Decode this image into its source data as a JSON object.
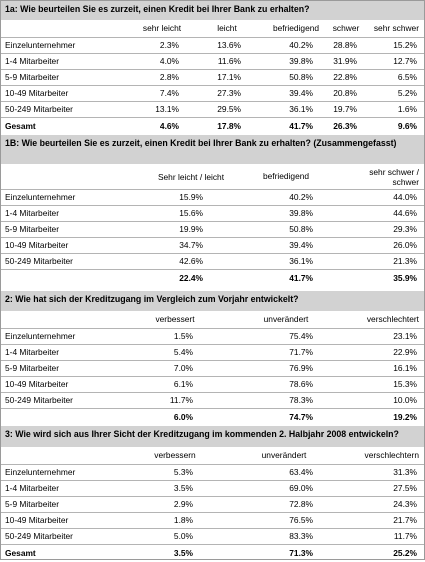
{
  "s1a": {
    "title": "1a: Wie beurteilen Sie es zurzeit, einen Kredit bei Ihrer Bank zu erhalten?",
    "headers": [
      "sehr leicht",
      "leicht",
      "befriedigend",
      "schwer",
      "sehr schwer"
    ],
    "rows": [
      {
        "label": "Einzelunternehmer",
        "values": [
          "2.3%",
          "13.6%",
          "40.2%",
          "28.8%",
          "15.2%"
        ]
      },
      {
        "label": "1-4 Mitarbeiter",
        "values": [
          "4.0%",
          "11.6%",
          "39.8%",
          "31.9%",
          "12.7%"
        ]
      },
      {
        "label": "5-9 Mitarbeiter",
        "values": [
          "2.8%",
          "17.1%",
          "50.8%",
          "22.8%",
          "6.5%"
        ]
      },
      {
        "label": "10-49 Mitarbeiter",
        "values": [
          "7.4%",
          "27.3%",
          "39.4%",
          "20.8%",
          "5.2%"
        ]
      },
      {
        "label": "50-249 Mitarbeiter",
        "values": [
          "13.1%",
          "29.5%",
          "36.1%",
          "19.7%",
          "1.6%"
        ]
      }
    ],
    "total": {
      "label": "Gesamt",
      "values": [
        "4.6%",
        "17.8%",
        "41.7%",
        "26.3%",
        "9.6%"
      ]
    }
  },
  "s1b": {
    "title": "1B: Wie beurteilen Sie es zurzeit, einen Kredit bei Ihrer Bank zu erhalten? (Zusammengefasst)",
    "headers": [
      "Sehr leicht / leicht",
      "befriedigend",
      "sehr schwer / schwer"
    ],
    "rows": [
      {
        "label": "Einzelunternehmer",
        "values": [
          "15.9%",
          "40.2%",
          "44.0%"
        ]
      },
      {
        "label": "1-4 Mitarbeiter",
        "values": [
          "15.6%",
          "39.8%",
          "44.6%"
        ]
      },
      {
        "label": "5-9 Mitarbeiter",
        "values": [
          "19.9%",
          "50.8%",
          "29.3%"
        ]
      },
      {
        "label": "10-49 Mitarbeiter",
        "values": [
          "34.7%",
          "39.4%",
          "26.0%"
        ]
      },
      {
        "label": "50-249 Mitarbeiter",
        "values": [
          "42.6%",
          "36.1%",
          "21.3%"
        ]
      }
    ],
    "total": {
      "label": "",
      "values": [
        "22.4%",
        "41.7%",
        "35.9%"
      ]
    }
  },
  "s2": {
    "title": "2: Wie hat sich der Kreditzugang im Vergleich zum Vorjahr entwickelt?",
    "headers": [
      "verbessert",
      "unverändert",
      "verschlechtert"
    ],
    "rows": [
      {
        "label": "Einzelunternehmer",
        "values": [
          "1.5%",
          "75.4%",
          "23.1%"
        ]
      },
      {
        "label": "1-4 Mitarbeiter",
        "values": [
          "5.4%",
          "71.7%",
          "22.9%"
        ]
      },
      {
        "label": "5-9 Mitarbeiter",
        "values": [
          "7.0%",
          "76.9%",
          "16.1%"
        ]
      },
      {
        "label": "10-49 Mitarbeiter",
        "values": [
          "6.1%",
          "78.6%",
          "15.3%"
        ]
      },
      {
        "label": "50-249 Mitarbeiter",
        "values": [
          "11.7%",
          "78.3%",
          "10.0%"
        ]
      }
    ],
    "total": {
      "label": "",
      "values": [
        "6.0%",
        "74.7%",
        "19.2%"
      ]
    }
  },
  "s3": {
    "title": "3: Wie wird sich aus Ihrer Sicht der Kreditzugang im kommenden 2. Halbjahr 2008 entwickeln?",
    "headers": [
      "verbessern",
      "unverändert",
      "verschlechtern"
    ],
    "rows": [
      {
        "label": "Einzelunternehmer",
        "values": [
          "5.3%",
          "63.4%",
          "31.3%"
        ]
      },
      {
        "label": "1-4 Mitarbeiter",
        "values": [
          "3.5%",
          "69.0%",
          "27.5%"
        ]
      },
      {
        "label": "5-9 Mitarbeiter",
        "values": [
          "2.9%",
          "72.8%",
          "24.3%"
        ]
      },
      {
        "label": "10-49 Mitarbeiter",
        "values": [
          "1.8%",
          "76.5%",
          "21.7%"
        ]
      },
      {
        "label": "50-249 Mitarbeiter",
        "values": [
          "5.0%",
          "83.3%",
          "11.7%"
        ]
      }
    ],
    "total": {
      "label": "Gesamt",
      "values": [
        "3.5%",
        "71.3%",
        "25.2%"
      ]
    }
  }
}
